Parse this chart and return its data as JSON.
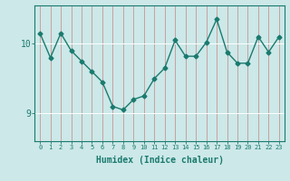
{
  "xlabel": "Humidex (Indice chaleur)",
  "x": [
    0,
    1,
    2,
    3,
    4,
    5,
    6,
    7,
    8,
    9,
    10,
    11,
    12,
    13,
    14,
    15,
    16,
    17,
    18,
    19,
    20,
    21,
    22,
    23
  ],
  "y": [
    10.15,
    9.8,
    10.15,
    9.9,
    9.75,
    9.6,
    9.45,
    9.1,
    9.05,
    9.2,
    9.25,
    9.5,
    9.65,
    10.05,
    9.82,
    9.82,
    10.02,
    10.35,
    9.88,
    9.72,
    9.72,
    10.1,
    9.88,
    10.1
  ],
  "line_color": "#1a7a6e",
  "marker_color": "#1a7a6e",
  "bg_color": "#cce8e8",
  "grid_color_v": "#c8a0a0",
  "grid_color_h": "#ffffff",
  "axis_color": "#1a7a6e",
  "tick_label_color": "#1a7a6e",
  "ylim": [
    8.6,
    10.55
  ],
  "yticks": [
    9,
    10
  ],
  "xlim": [
    -0.5,
    23.5
  ],
  "xticks": [
    0,
    1,
    2,
    3,
    4,
    5,
    6,
    7,
    8,
    9,
    10,
    11,
    12,
    13,
    14,
    15,
    16,
    17,
    18,
    19,
    20,
    21,
    22,
    23
  ]
}
